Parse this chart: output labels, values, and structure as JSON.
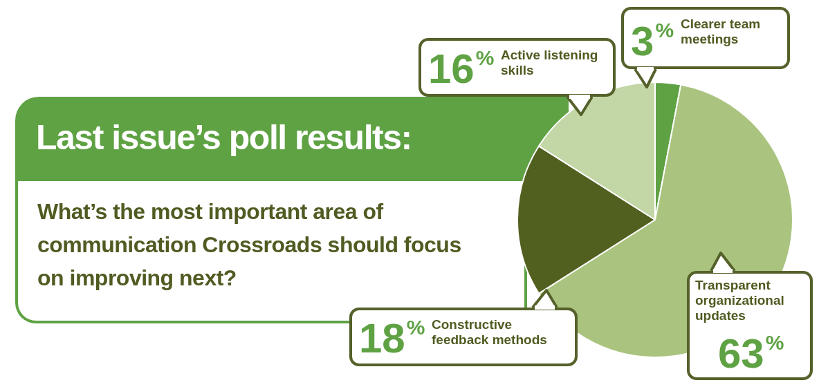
{
  "chart_data": {
    "type": "pie",
    "title": "Last issue’s poll results:",
    "subtitle": "What’s the most important area of communication Crossroads should focus on improving next?",
    "categories": [
      "Clearer team meetings",
      "Transparent organizational updates",
      "Constructive feedback methods",
      "Active listening skills"
    ],
    "values": [
      3,
      63,
      18,
      16
    ],
    "colors": [
      "#5fa244",
      "#aac47f",
      "#52601f",
      "#c3d6a6"
    ],
    "value_labels": [
      "3$^{%}$",
      "63$^{%}$",
      "18$^{%}$",
      "16$^{%}$"
    ]
  }
}
